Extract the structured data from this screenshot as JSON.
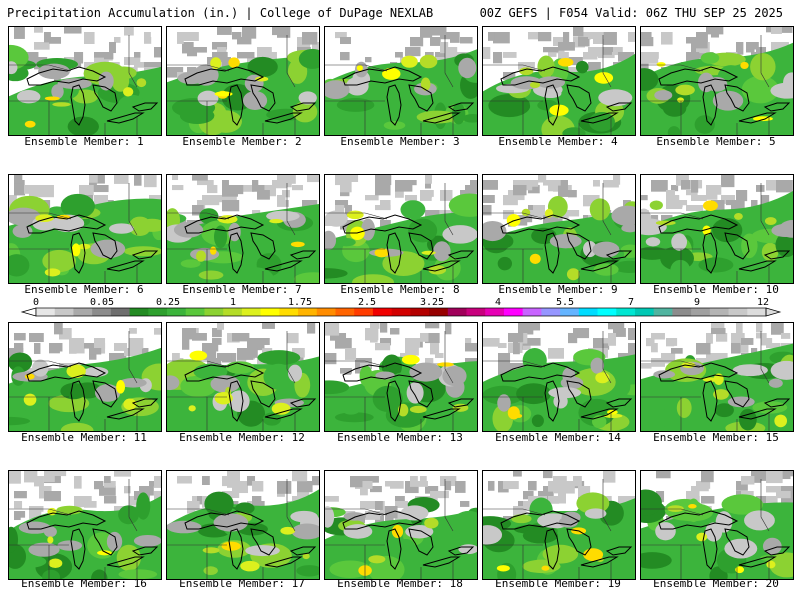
{
  "header": {
    "title": "Precipitation Accumulation (in.) | College of DuPage NEXLAB",
    "run": "00Z GEFS | F054 Valid: 06Z THU SEP 25 2025"
  },
  "colorbar": {
    "ticks": [
      "0",
      "0.05",
      "0.25",
      "1",
      "1.75",
      "2.5",
      "3.25",
      "4",
      "5.5",
      "7",
      "9",
      "12"
    ],
    "colors": [
      "#e6e6e6",
      "#c8c8c8",
      "#a9a9a9",
      "#8c8c8c",
      "#6e6e6e",
      "#238b23",
      "#2ea02e",
      "#3cb43c",
      "#5ac83c",
      "#8cd232",
      "#b4dc28",
      "#dcf01e",
      "#ffff00",
      "#ffdc00",
      "#ffb400",
      "#ff8c00",
      "#ff6400",
      "#ff3c00",
      "#f00000",
      "#d20000",
      "#b40000",
      "#960000",
      "#a0005a",
      "#c8007d",
      "#e600b4",
      "#ff00ff",
      "#c864ff",
      "#9696ff",
      "#64b4ff",
      "#00dcff",
      "#00ffff",
      "#00e6d2",
      "#00c8b4",
      "#50b4a0",
      "#8c8c8c",
      "#a0a0a0",
      "#b4b4b4",
      "#c8c8c8",
      "#dcdcdc"
    ]
  },
  "members": [
    {
      "label": "Ensemble Member: 1",
      "seed": 11
    },
    {
      "label": "Ensemble Member: 2",
      "seed": 23
    },
    {
      "label": "Ensemble Member: 3",
      "seed": 37
    },
    {
      "label": "Ensemble Member: 4",
      "seed": 41
    },
    {
      "label": "Ensemble Member: 5",
      "seed": 53
    },
    {
      "label": "Ensemble Member: 6",
      "seed": 67
    },
    {
      "label": "Ensemble Member: 7",
      "seed": 71
    },
    {
      "label": "Ensemble Member: 8",
      "seed": 83
    },
    {
      "label": "Ensemble Member: 9",
      "seed": 97
    },
    {
      "label": "Ensemble Member: 10",
      "seed": 101
    },
    {
      "label": "Ensemble Member: 11",
      "seed": 113
    },
    {
      "label": "Ensemble Member: 12",
      "seed": 127
    },
    {
      "label": "Ensemble Member: 13",
      "seed": 131
    },
    {
      "label": "Ensemble Member: 14",
      "seed": 149
    },
    {
      "label": "Ensemble Member: 15",
      "seed": 157
    },
    {
      "label": "Ensemble Member: 16",
      "seed": 163
    },
    {
      "label": "Ensemble Member: 17",
      "seed": 179
    },
    {
      "label": "Ensemble Member: 18",
      "seed": 181
    },
    {
      "label": "Ensemble Member: 19",
      "seed": 191
    },
    {
      "label": "Ensemble Member: 20",
      "seed": 199
    }
  ]
}
